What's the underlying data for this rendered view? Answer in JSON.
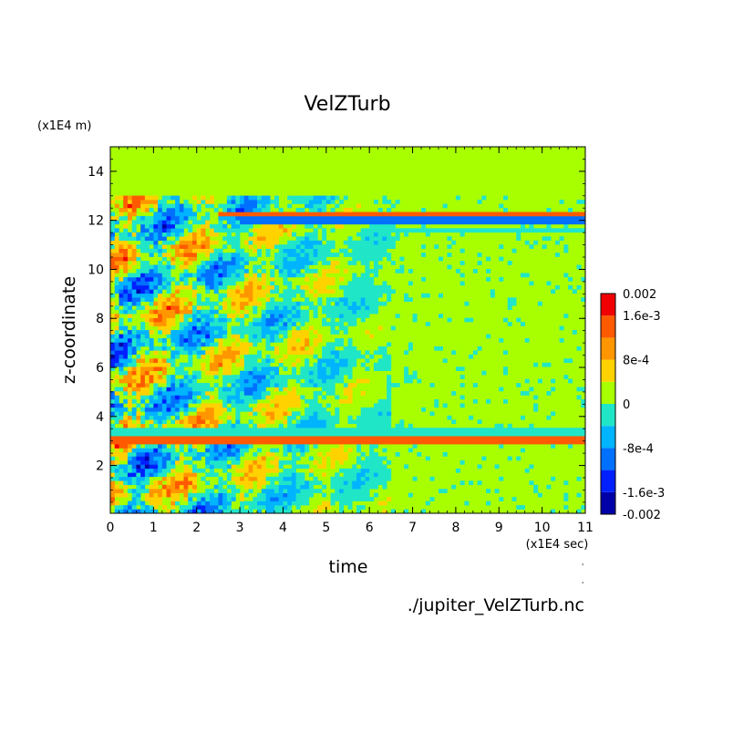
{
  "chart_data": {
    "type": "heatmap",
    "title": "VelZTurb",
    "xlabel": "time",
    "ylabel": "z-coordinate",
    "x_unit": "(x1E4 sec)",
    "y_unit": "(x1E4 m)",
    "source_file": "./jupiter_VelZTurb.nc",
    "xlim": [
      0,
      11
    ],
    "ylim": [
      0.05,
      15.0
    ],
    "x_ticks": [
      0,
      1,
      2,
      3,
      4,
      5,
      6,
      7,
      8,
      9,
      10,
      11
    ],
    "y_ticks": [
      2,
      4,
      6,
      8,
      10,
      12,
      14
    ],
    "colorbar": {
      "levels": [
        -0.002,
        -0.0016,
        -0.0012,
        -0.0008,
        -0.0004,
        0,
        0.0004,
        0.0008,
        0.0012,
        0.0016,
        0.002
      ],
      "colors": [
        "#0000a8",
        "#0020ff",
        "#0070ff",
        "#00b4ff",
        "#20e6c8",
        "#a8ff00",
        "#ffd200",
        "#ff9600",
        "#ff5a00",
        "#f00000"
      ],
      "labels": [
        {
          "value": 0.002,
          "text": "0.002"
        },
        {
          "value": 0.0016,
          "text": "1.6e-3"
        },
        {
          "value": 0.0008,
          "text": "8e-4"
        },
        {
          "value": 0,
          "text": "0"
        },
        {
          "value": -0.0008,
          "text": "-8e-4"
        },
        {
          "value": -0.0016,
          "text": "-1.6e-3"
        },
        {
          "value": -0.002,
          "text": "-0.002"
        }
      ]
    },
    "background_value": 0,
    "features": [
      {
        "name": "upper-band-positive",
        "y": 12.25,
        "t_start": 2.5,
        "t_end": 11,
        "value": 0.0014
      },
      {
        "name": "upper-band-negative",
        "y": 12.0,
        "t_start": 3.0,
        "t_end": 11,
        "value": -0.0012
      },
      {
        "name": "upper-band-cyan",
        "y": 11.6,
        "t_start": 6.5,
        "t_end": 11,
        "value": -0.0003
      },
      {
        "name": "lower-band-cyan",
        "y": 3.4,
        "t_start": 0,
        "t_end": 11,
        "value": -0.0004
      },
      {
        "name": "lower-band-positive",
        "y": 3.05,
        "t_start": 0,
        "t_end": 11,
        "value": 0.0012
      },
      {
        "name": "turbulent-region",
        "y_min": 0.05,
        "y_max": 13,
        "t_start": 0,
        "t_end": 6.5,
        "value_range": [
          -0.0012,
          0.0012
        ]
      }
    ]
  }
}
